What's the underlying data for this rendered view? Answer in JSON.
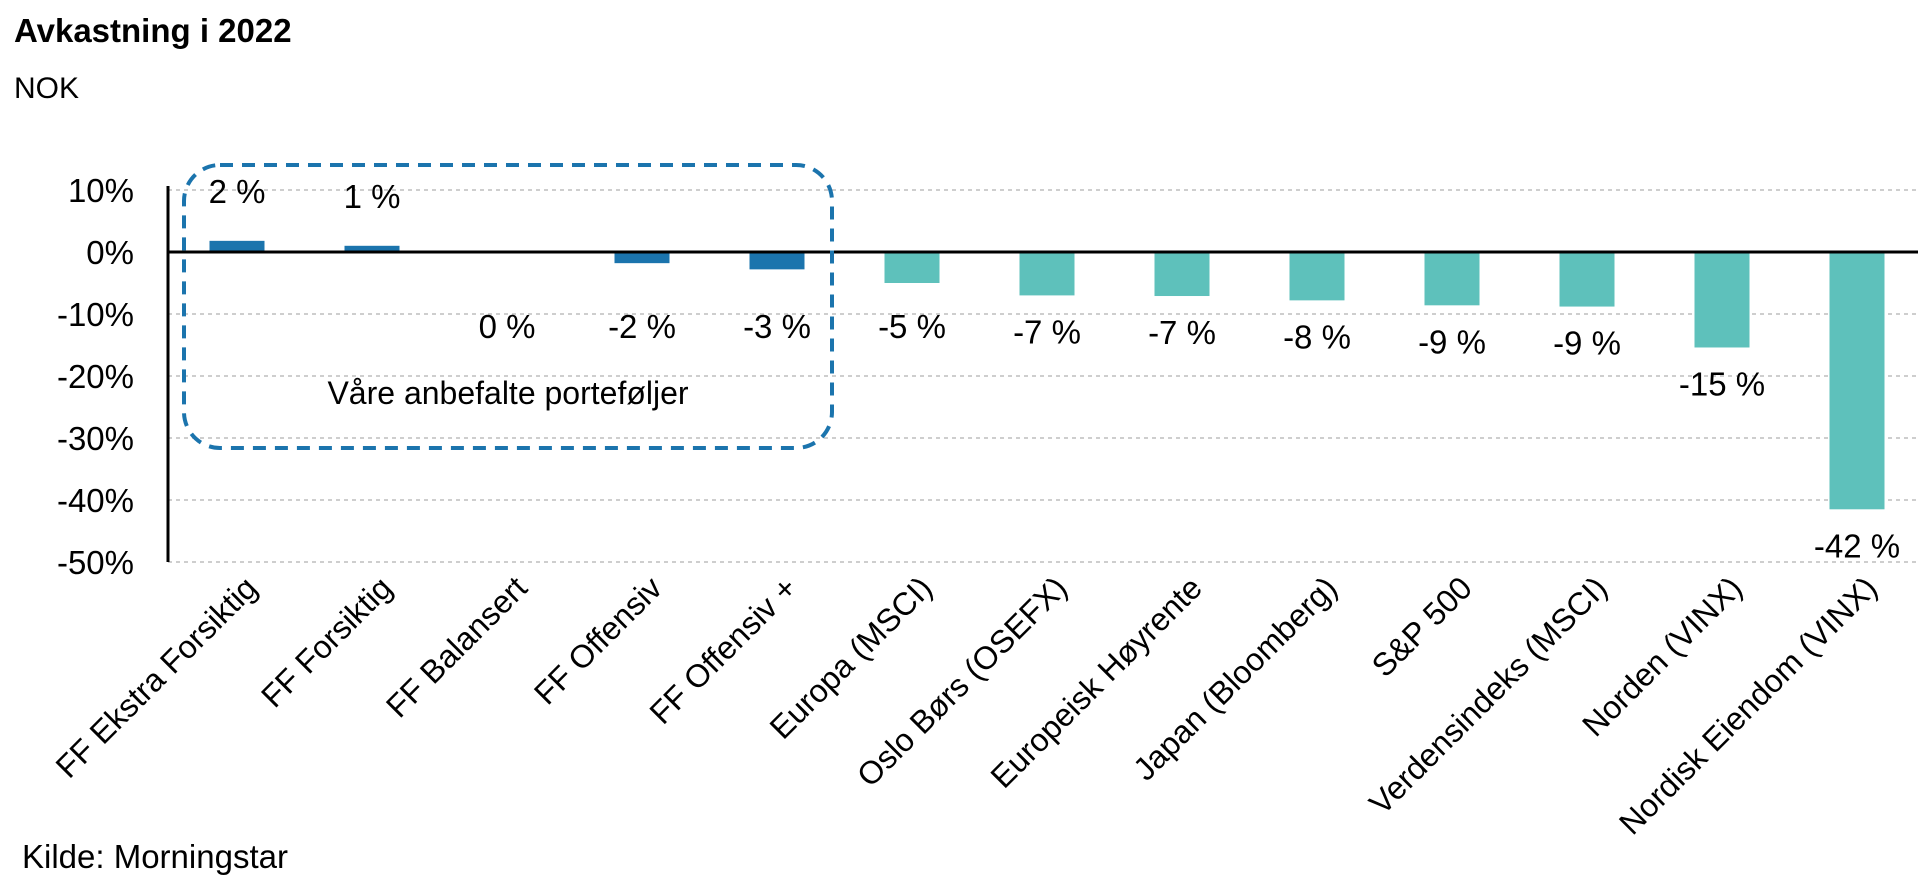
{
  "title": "Avkastning i 2022",
  "subtitle": "NOK",
  "source": "Kilde: Morningstar",
  "colors": {
    "portfolio": "#1b74ad",
    "benchmark": "#5ec1bb",
    "box": "#1b74ad",
    "grid": "#bdbdbd"
  },
  "chart_data": {
    "type": "bar",
    "title": "Avkastning i 2022",
    "subtitle": "NOK",
    "xlabel": "",
    "ylabel": "",
    "ylim": [
      -50,
      10
    ],
    "yticks": [
      10,
      0,
      -10,
      -20,
      -30,
      -40,
      -50
    ],
    "ytick_labels": [
      "10%",
      "0%",
      "-10%",
      "-20%",
      "-30%",
      "-40%",
      "-50%"
    ],
    "grid": true,
    "categories": [
      "FF Ekstra Forsiktig",
      "FF Forsiktig",
      "FF Balansert",
      "FF Offensiv",
      "FF Offensiv +",
      "Europa (MSCI)",
      "Oslo Børs (OSEFX)",
      "Europeisk Høyrente",
      "Japan (Bloomberg)",
      "S&P 500",
      "Verdensindeks (MSCI)",
      "Norden (VINX)",
      "Nordisk Eiendom (VINX)"
    ],
    "values": [
      1.8,
      1.0,
      0.0,
      -1.8,
      -2.8,
      -5.0,
      -7.0,
      -7.1,
      -7.8,
      -8.6,
      -8.8,
      -15.4,
      -41.5
    ],
    "data_labels": [
      "2 %",
      "1 %",
      "0 %",
      "-2 %",
      "-3 %",
      "-5 %",
      "-7 %",
      "-7 %",
      "-8 %",
      "-9 %",
      "-9 %",
      "-15 %",
      "-42 %"
    ],
    "group_index": [
      0,
      0,
      0,
      0,
      0,
      1,
      1,
      1,
      1,
      1,
      1,
      1,
      1
    ],
    "annotation": "Våre anbefalte porteføljer"
  }
}
